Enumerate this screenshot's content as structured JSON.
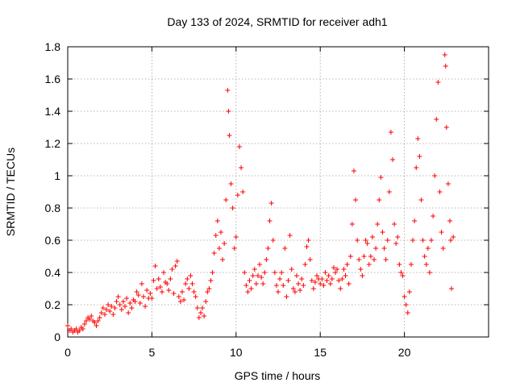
{
  "chart_data": {
    "type": "scatter",
    "title": "Day 133 of 2024, SRMTID for receiver adh1",
    "xlabel": "GPS time / hours",
    "ylabel": "SRMTID / TECUs",
    "xlim": [
      0,
      25
    ],
    "ylim": [
      0,
      1.8
    ],
    "xticks": [
      0,
      5,
      10,
      15,
      20
    ],
    "yticks": [
      0,
      0.2,
      0.4,
      0.6,
      0.8,
      1,
      1.2,
      1.4,
      1.6,
      1.8
    ],
    "ytick_labels": [
      "0",
      "0.2",
      "0.4",
      "0.6",
      "0.8",
      "1",
      "1.2",
      "1.4",
      "1.6",
      "1.8"
    ],
    "grid": true,
    "marker": "+",
    "color": "#ff0000",
    "series": [
      {
        "name": "SRMTID",
        "points": [
          [
            0.0,
            0.07
          ],
          [
            0.1,
            0.04
          ],
          [
            0.2,
            0.05
          ],
          [
            0.3,
            0.03
          ],
          [
            0.4,
            0.04
          ],
          [
            0.5,
            0.05
          ],
          [
            0.6,
            0.03
          ],
          [
            0.7,
            0.04
          ],
          [
            0.8,
            0.06
          ],
          [
            0.9,
            0.05
          ],
          [
            1.0,
            0.08
          ],
          [
            1.1,
            0.1
          ],
          [
            1.2,
            0.12
          ],
          [
            1.3,
            0.11
          ],
          [
            1.4,
            0.13
          ],
          [
            1.5,
            0.1
          ],
          [
            1.6,
            0.09
          ],
          [
            1.7,
            0.07
          ],
          [
            1.8,
            0.1
          ],
          [
            1.9,
            0.12
          ],
          [
            2.0,
            0.15
          ],
          [
            2.1,
            0.18
          ],
          [
            2.2,
            0.14
          ],
          [
            2.3,
            0.17
          ],
          [
            2.4,
            0.2
          ],
          [
            2.5,
            0.16
          ],
          [
            2.6,
            0.19
          ],
          [
            2.7,
            0.14
          ],
          [
            2.8,
            0.18
          ],
          [
            2.9,
            0.22
          ],
          [
            3.0,
            0.25
          ],
          [
            3.1,
            0.2
          ],
          [
            3.2,
            0.17
          ],
          [
            3.3,
            0.22
          ],
          [
            3.4,
            0.19
          ],
          [
            3.5,
            0.24
          ],
          [
            3.6,
            0.15
          ],
          [
            3.7,
            0.21
          ],
          [
            3.8,
            0.18
          ],
          [
            3.9,
            0.23
          ],
          [
            4.0,
            0.22
          ],
          [
            4.1,
            0.28
          ],
          [
            4.2,
            0.26
          ],
          [
            4.3,
            0.21
          ],
          [
            4.4,
            0.33
          ],
          [
            4.5,
            0.25
          ],
          [
            4.6,
            0.19
          ],
          [
            4.7,
            0.29
          ],
          [
            4.8,
            0.24
          ],
          [
            4.9,
            0.27
          ],
          [
            5.0,
            0.24
          ],
          [
            5.1,
            0.35
          ],
          [
            5.2,
            0.44
          ],
          [
            5.3,
            0.3
          ],
          [
            5.4,
            0.36
          ],
          [
            5.5,
            0.31
          ],
          [
            5.6,
            0.28
          ],
          [
            5.7,
            0.4
          ],
          [
            5.8,
            0.34
          ],
          [
            5.9,
            0.33
          ],
          [
            6.0,
            0.29
          ],
          [
            6.1,
            0.36
          ],
          [
            6.2,
            0.42
          ],
          [
            6.3,
            0.27
          ],
          [
            6.4,
            0.44
          ],
          [
            6.5,
            0.47
          ],
          [
            6.6,
            0.25
          ],
          [
            6.7,
            0.22
          ],
          [
            6.8,
            0.28
          ],
          [
            6.9,
            0.23
          ],
          [
            7.0,
            0.33
          ],
          [
            7.1,
            0.36
          ],
          [
            7.2,
            0.3
          ],
          [
            7.3,
            0.38
          ],
          [
            7.4,
            0.33
          ],
          [
            7.5,
            0.28
          ],
          [
            7.6,
            0.25
          ],
          [
            7.7,
            0.18
          ],
          [
            7.8,
            0.12
          ],
          [
            7.9,
            0.15
          ],
          [
            8.0,
            0.18
          ],
          [
            8.1,
            0.13
          ],
          [
            8.2,
            0.22
          ],
          [
            8.3,
            0.28
          ],
          [
            8.4,
            0.3
          ],
          [
            8.5,
            0.35
          ],
          [
            8.6,
            0.4
          ],
          [
            8.7,
            0.52
          ],
          [
            8.8,
            0.63
          ],
          [
            8.9,
            0.72
          ],
          [
            9.0,
            0.55
          ],
          [
            9.1,
            0.65
          ],
          [
            9.2,
            0.48
          ],
          [
            9.3,
            0.58
          ],
          [
            9.4,
            0.85
          ],
          [
            9.5,
            1.53
          ],
          [
            9.55,
            1.4
          ],
          [
            9.6,
            1.25
          ],
          [
            9.7,
            0.95
          ],
          [
            9.8,
            0.8
          ],
          [
            9.9,
            0.55
          ],
          [
            10.0,
            0.62
          ],
          [
            10.1,
            0.88
          ],
          [
            10.2,
            1.18
          ],
          [
            10.3,
            1.05
          ],
          [
            10.4,
            0.9
          ],
          [
            10.5,
            0.4
          ],
          [
            10.6,
            0.32
          ],
          [
            10.7,
            0.28
          ],
          [
            10.8,
            0.35
          ],
          [
            10.9,
            0.3
          ],
          [
            11.0,
            0.38
          ],
          [
            11.1,
            0.42
          ],
          [
            11.2,
            0.33
          ],
          [
            11.3,
            0.38
          ],
          [
            11.4,
            0.45
          ],
          [
            11.5,
            0.37
          ],
          [
            11.6,
            0.33
          ],
          [
            11.7,
            0.4
          ],
          [
            11.8,
            0.48
          ],
          [
            11.9,
            0.55
          ],
          [
            12.0,
            0.72
          ],
          [
            12.1,
            0.83
          ],
          [
            12.2,
            0.6
          ],
          [
            12.3,
            0.4
          ],
          [
            12.4,
            0.32
          ],
          [
            12.5,
            0.28
          ],
          [
            12.6,
            0.36
          ],
          [
            12.7,
            0.4
          ],
          [
            12.8,
            0.32
          ],
          [
            12.9,
            0.55
          ],
          [
            13.0,
            0.25
          ],
          [
            13.1,
            0.35
          ],
          [
            13.2,
            0.63
          ],
          [
            13.3,
            0.42
          ],
          [
            13.4,
            0.3
          ],
          [
            13.5,
            0.28
          ],
          [
            13.6,
            0.38
          ],
          [
            13.7,
            0.33
          ],
          [
            13.8,
            0.29
          ],
          [
            13.9,
            0.36
          ],
          [
            14.0,
            0.32
          ],
          [
            14.1,
            0.45
          ],
          [
            14.2,
            0.56
          ],
          [
            14.3,
            0.6
          ],
          [
            14.4,
            0.48
          ],
          [
            14.5,
            0.35
          ],
          [
            14.6,
            0.3
          ],
          [
            14.7,
            0.34
          ],
          [
            14.8,
            0.38
          ],
          [
            14.9,
            0.36
          ],
          [
            15.0,
            0.33
          ],
          [
            15.1,
            0.36
          ],
          [
            15.2,
            0.32
          ],
          [
            15.3,
            0.4
          ],
          [
            15.4,
            0.35
          ],
          [
            15.5,
            0.38
          ],
          [
            15.6,
            0.33
          ],
          [
            15.7,
            0.36
          ],
          [
            15.8,
            0.43
          ],
          [
            15.9,
            0.4
          ],
          [
            16.0,
            0.42
          ],
          [
            16.1,
            0.35
          ],
          [
            16.2,
            0.3
          ],
          [
            16.3,
            0.36
          ],
          [
            16.4,
            0.42
          ],
          [
            16.5,
            0.38
          ],
          [
            16.6,
            0.45
          ],
          [
            16.7,
            0.33
          ],
          [
            16.8,
            0.5
          ],
          [
            16.9,
            0.7
          ],
          [
            17.0,
            1.03
          ],
          [
            17.1,
            0.85
          ],
          [
            17.2,
            0.6
          ],
          [
            17.3,
            0.48
          ],
          [
            17.4,
            0.42
          ],
          [
            17.5,
            0.38
          ],
          [
            17.6,
            0.5
          ],
          [
            17.7,
            0.6
          ],
          [
            17.8,
            0.58
          ],
          [
            17.9,
            0.45
          ],
          [
            18.0,
            0.5
          ],
          [
            18.1,
            0.62
          ],
          [
            18.2,
            0.48
          ],
          [
            18.3,
            0.55
          ],
          [
            18.4,
            0.7
          ],
          [
            18.5,
            0.85
          ],
          [
            18.6,
            0.99
          ],
          [
            18.7,
            0.65
          ],
          [
            18.8,
            0.55
          ],
          [
            18.9,
            0.48
          ],
          [
            19.0,
            0.6
          ],
          [
            19.1,
            0.9
          ],
          [
            19.2,
            1.27
          ],
          [
            19.3,
            1.1
          ],
          [
            19.4,
            0.7
          ],
          [
            19.5,
            0.58
          ],
          [
            19.6,
            0.62
          ],
          [
            19.7,
            0.45
          ],
          [
            19.8,
            0.4
          ],
          [
            19.9,
            0.38
          ],
          [
            20.0,
            0.25
          ],
          [
            20.1,
            0.2
          ],
          [
            20.2,
            0.15
          ],
          [
            20.3,
            0.28
          ],
          [
            20.4,
            0.45
          ],
          [
            20.5,
            0.6
          ],
          [
            20.6,
            0.72
          ],
          [
            20.7,
            1.05
          ],
          [
            20.8,
            1.23
          ],
          [
            20.9,
            1.12
          ],
          [
            21.0,
            0.85
          ],
          [
            21.1,
            0.6
          ],
          [
            21.2,
            0.5
          ],
          [
            21.3,
            0.45
          ],
          [
            21.4,
            0.55
          ],
          [
            21.5,
            0.4
          ],
          [
            21.6,
            0.6
          ],
          [
            21.7,
            0.75
          ],
          [
            21.8,
            1.0
          ],
          [
            21.9,
            1.35
          ],
          [
            22.0,
            1.58
          ],
          [
            22.1,
            0.9
          ],
          [
            22.2,
            0.65
          ],
          [
            22.3,
            0.55
          ],
          [
            22.4,
            1.75
          ],
          [
            22.45,
            1.68
          ],
          [
            22.5,
            1.3
          ],
          [
            22.6,
            0.95
          ],
          [
            22.7,
            0.72
          ],
          [
            22.75,
            0.6
          ],
          [
            22.8,
            0.3
          ],
          [
            22.9,
            0.62
          ]
        ]
      }
    ]
  }
}
